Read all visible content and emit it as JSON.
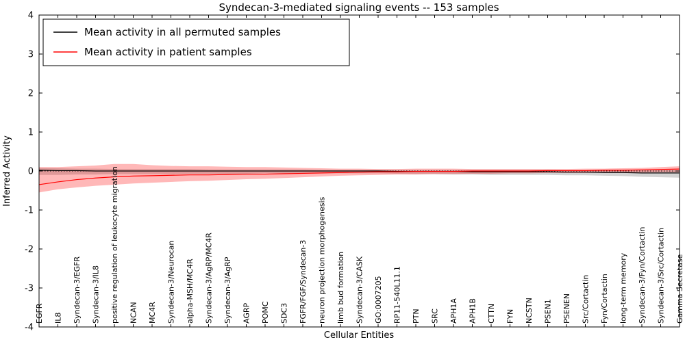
{
  "chart_data": {
    "type": "line",
    "title": "Syndecan-3-mediated signaling events -- 153 samples",
    "xlabel": "Cellular Entities",
    "ylabel": "Inferred Activity",
    "ylim": [
      -4,
      4
    ],
    "yticks": [
      -4,
      -3,
      -2,
      -1,
      0,
      1,
      2,
      3,
      4
    ],
    "grid": false,
    "legend_position": "upper left",
    "zero_line": {
      "value": 0,
      "style": "dotted",
      "color": "#000000"
    },
    "categories": [
      "EGFR",
      "IL8",
      "Syndecan-3/EGFR",
      "Syndecan-3/IL8",
      "positive regulation of leukocyte migration",
      "NCAN",
      "MC4R",
      "Syndecan-3/Neurocan",
      "alpha-MSH/MC4R",
      "Syndecan-3/AgRP/MC4R",
      "Syndecan-3/AgRP",
      "AGRP",
      "POMC",
      "SDC3",
      "FGFR/FGF/Syndecan-3",
      "neuron projection morphogenesis",
      "limb bud formation",
      "Syndecan-3/CASK",
      "GO:0007205",
      "RP11-540L11.1",
      "PTN",
      "SRC",
      "APH1A",
      "APH1B",
      "CTTN",
      "FYN",
      "NCSTN",
      "PSEN1",
      "PSENEN",
      "Src/Cortactin",
      "Fyn/Cortactin",
      "long-term memory",
      "Syndecan-3/Fyn/Cortactin",
      "Syndecan-3/Src/Cortactin",
      "Gamma Secretase"
    ],
    "series": [
      {
        "id": "permuted",
        "name": "Mean activity in all permuted samples",
        "color": "#000000",
        "band_color": "rgba(130,130,130,0.35)",
        "values": [
          0.02,
          0.01,
          0.01,
          0.0,
          0.0,
          0.0,
          0.0,
          0.0,
          0.0,
          0.0,
          0.0,
          0.0,
          0.0,
          0.0,
          0.0,
          0.0,
          0.0,
          0.0,
          0.0,
          -0.01,
          -0.01,
          -0.01,
          -0.01,
          -0.02,
          -0.02,
          -0.02,
          -0.02,
          -0.02,
          -0.03,
          -0.03,
          -0.04,
          -0.04,
          -0.05,
          -0.05,
          -0.05
        ],
        "band_upper": [
          0.08,
          0.07,
          0.06,
          0.06,
          0.05,
          0.05,
          0.05,
          0.05,
          0.05,
          0.04,
          0.04,
          0.04,
          0.04,
          0.04,
          0.04,
          0.03,
          0.03,
          0.03,
          0.03,
          0.03,
          0.03,
          0.03,
          0.03,
          0.03,
          0.03,
          0.03,
          0.03,
          0.03,
          0.02,
          0.02,
          0.02,
          0.02,
          0.02,
          0.02,
          0.02
        ],
        "band_lower": [
          -0.1,
          -0.1,
          -0.09,
          -0.09,
          -0.08,
          -0.08,
          -0.08,
          -0.08,
          -0.07,
          -0.07,
          -0.07,
          -0.07,
          -0.06,
          -0.06,
          -0.06,
          -0.06,
          -0.06,
          -0.06,
          -0.06,
          -0.07,
          -0.08,
          -0.08,
          -0.09,
          -0.09,
          -0.1,
          -0.1,
          -0.1,
          -0.1,
          -0.11,
          -0.11,
          -0.12,
          -0.13,
          -0.15,
          -0.16,
          -0.17
        ]
      },
      {
        "id": "patient",
        "name": "Mean activity in patient samples",
        "color": "#ff0000",
        "band_color": "rgba(255,0,0,0.28)",
        "values": [
          -0.35,
          -0.28,
          -0.22,
          -0.18,
          -0.15,
          -0.13,
          -0.12,
          -0.11,
          -0.1,
          -0.1,
          -0.09,
          -0.08,
          -0.08,
          -0.07,
          -0.06,
          -0.05,
          -0.04,
          -0.03,
          -0.02,
          -0.02,
          -0.01,
          -0.01,
          -0.01,
          0.0,
          0.0,
          0.0,
          0.0,
          0.01,
          0.01,
          0.01,
          0.02,
          0.02,
          0.03,
          0.04,
          0.05
        ],
        "band_upper": [
          0.1,
          0.1,
          0.12,
          0.14,
          0.18,
          0.18,
          0.15,
          0.13,
          0.12,
          0.12,
          0.11,
          0.1,
          0.1,
          0.09,
          0.08,
          0.07,
          0.06,
          0.06,
          0.05,
          0.05,
          0.06,
          0.06,
          0.06,
          0.05,
          0.05,
          0.05,
          0.05,
          0.05,
          0.05,
          0.06,
          0.06,
          0.07,
          0.08,
          0.1,
          0.12
        ],
        "band_lower": [
          -0.55,
          -0.47,
          -0.42,
          -0.38,
          -0.35,
          -0.32,
          -0.3,
          -0.28,
          -0.26,
          -0.25,
          -0.23,
          -0.21,
          -0.2,
          -0.18,
          -0.16,
          -0.14,
          -0.12,
          -0.11,
          -0.1,
          -0.09,
          -0.09,
          -0.08,
          -0.08,
          -0.07,
          -0.07,
          -0.06,
          -0.06,
          -0.05,
          -0.05,
          -0.05,
          -0.04,
          -0.04,
          -0.04,
          -0.03,
          -0.03
        ]
      }
    ]
  }
}
